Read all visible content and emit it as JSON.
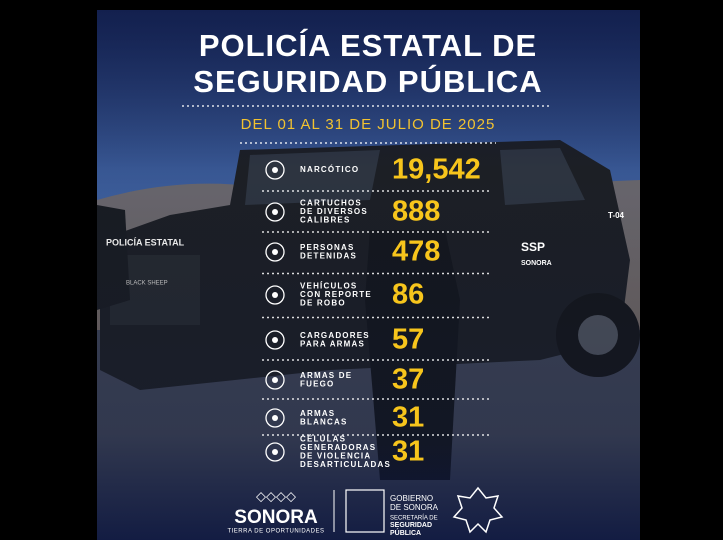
{
  "header": {
    "title": [
      "POLICÍA ESTATAL DE",
      "SEGURIDAD PÚBLICA"
    ],
    "date": "DEL 01 AL 31 DE JULIO DE 2025"
  },
  "vehicle": {
    "side_text": "POLICÍA ESTATAL",
    "door_text": [
      "SSP",
      "SONORA"
    ],
    "unit": "T-04",
    "grille": "BLACK SHEEP"
  },
  "items": [
    {
      "label": [
        "NARCÓTICO"
      ],
      "value": "19,542"
    },
    {
      "label": [
        "CARTUCHOS",
        "DE DIVERSOS",
        "CALIBRES"
      ],
      "value": "888"
    },
    {
      "label": [
        "PERSONAS",
        "DETENIDAS"
      ],
      "value": "478"
    },
    {
      "label": [
        "VEHÍCULOS",
        "CON REPORTE",
        "DE ROBO"
      ],
      "value": "86"
    },
    {
      "label": [
        "CARGADORES",
        "PARA ARMAS"
      ],
      "value": "57"
    },
    {
      "label": [
        "ARMAS DE",
        "FUEGO"
      ],
      "value": "37"
    },
    {
      "label": [
        "ARMAS",
        "BLANCAS"
      ],
      "value": "31"
    },
    {
      "label": [
        "CÉLULAS",
        "GENERADORAS",
        "DE VIOLENCIA",
        "DESARTICULADAS"
      ],
      "value": "31"
    }
  ],
  "footer": {
    "brand": "SONORA",
    "slogan": "TIERRA DE OPORTUNIDADES",
    "gov": [
      "GOBIERNO",
      "DE SONORA"
    ],
    "secretariat": [
      "SECRETARÍA DE",
      "SEGURIDAD",
      "PÚBLICA"
    ]
  }
}
